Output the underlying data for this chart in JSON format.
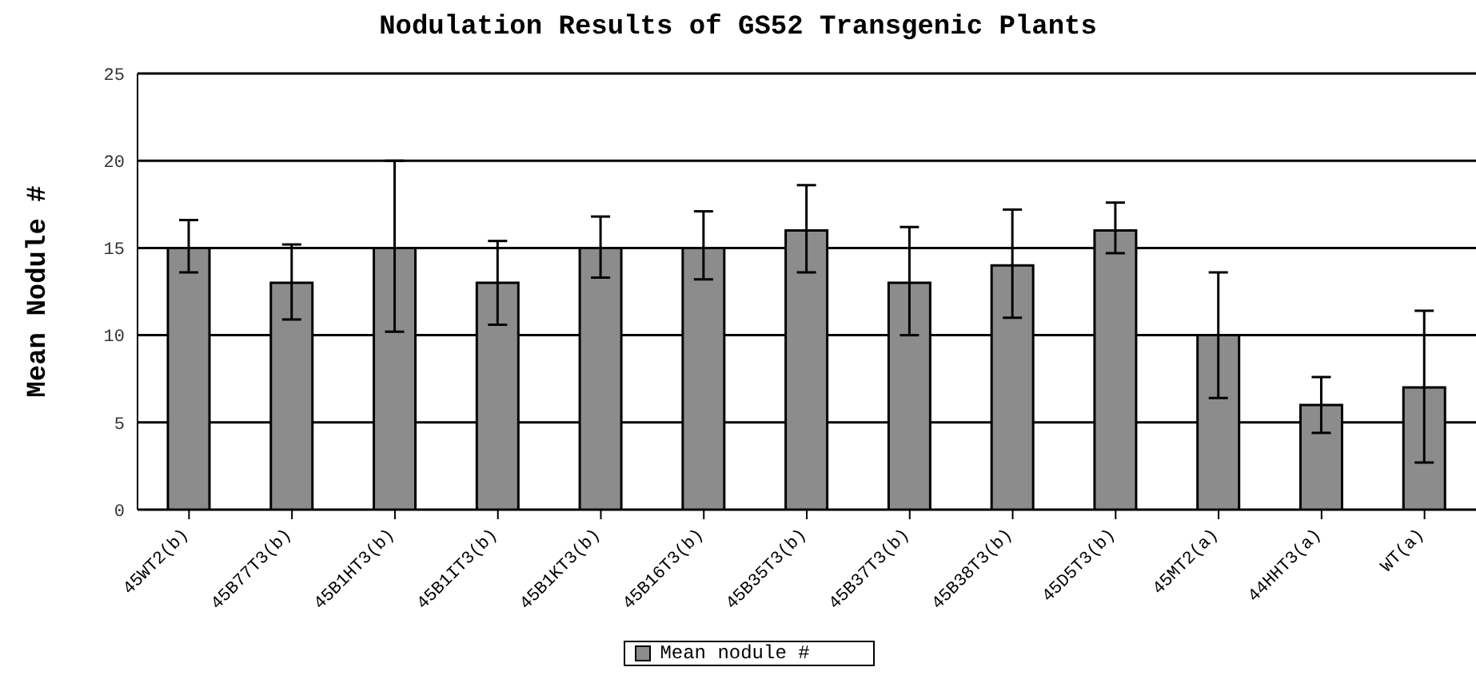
{
  "chart_data": {
    "type": "bar",
    "title": "Nodulation Results of GS52 Transgenic Plants",
    "ylabel": "Mean Nodule #",
    "categories": [
      "45WT2(b)",
      "45B77T3(b)",
      "45B1HT3(b)",
      "45B1IT3(b)",
      "45B1KT3(b)",
      "45B16T3(b)",
      "45B35T3(b)",
      "45B37T3(b)",
      "45B38T3(b)",
      "45D5T3(b)",
      "45MT2(a)",
      "44HHT3(a)",
      "WT(a)"
    ],
    "series": [
      {
        "name": "Mean nodule #",
        "color": "#8c8c8c",
        "values": [
          15,
          13,
          15,
          13,
          15,
          15,
          16,
          13,
          14,
          16,
          10,
          6,
          7
        ],
        "errors": [
          [
            13.6,
            16.6
          ],
          [
            10.9,
            15.2
          ],
          [
            10.2,
            20
          ],
          [
            10.6,
            15.4
          ],
          [
            13.3,
            16.8
          ],
          [
            13.2,
            17.1
          ],
          [
            13.6,
            18.6
          ],
          [
            10,
            16.2
          ],
          [
            11,
            17.2
          ],
          [
            14.7,
            17.6
          ],
          [
            6.4,
            13.6
          ],
          [
            4.4,
            7.6
          ],
          [
            2.7,
            11.4
          ]
        ]
      }
    ],
    "ylim": [
      0,
      25
    ],
    "yticks": [
      0,
      5,
      10,
      15,
      20,
      25
    ],
    "grid": "y",
    "legend": "bottom"
  }
}
